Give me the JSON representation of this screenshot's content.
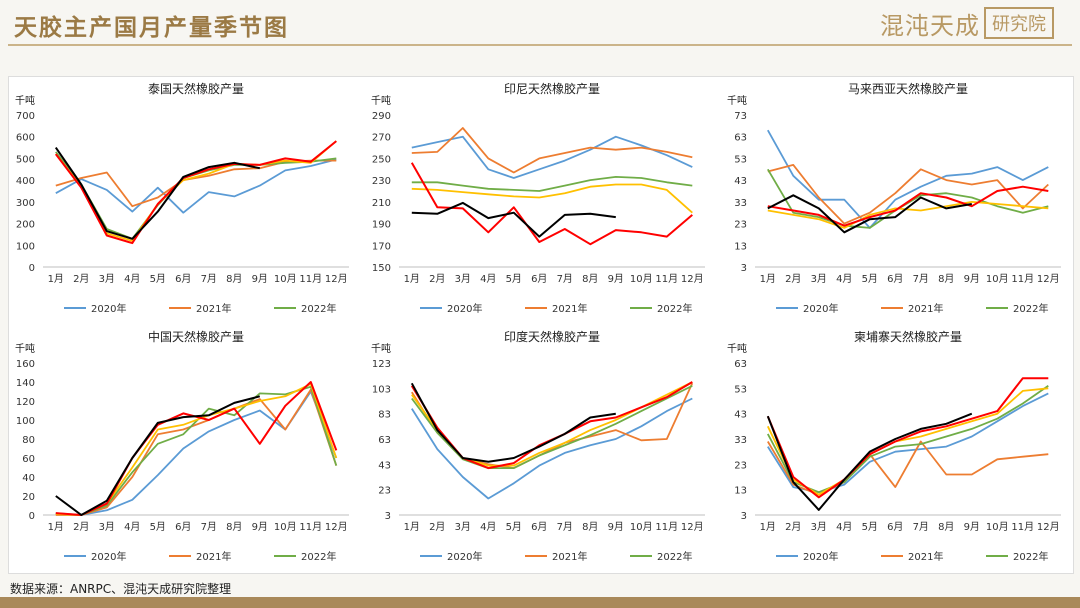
{
  "header": {
    "title": "天胶主产国月产量季节图",
    "logo_main": "混沌天成",
    "logo_box": "研究院"
  },
  "source_note": "数据来源：ANRPC、混沌天成研究院整理",
  "colors": {
    "y2020": "#5b9bd5",
    "y2021": "#ed7d31",
    "y2022": "#70ad47",
    "y2023": "#ffc000",
    "y2024": "#000000",
    "y2025": "#ff0000"
  },
  "chart_data": [
    {
      "type": "line",
      "title": "泰国天然橡胶产量",
      "unit": "千吨",
      "ylim": [
        0,
        700
      ],
      "yticks": [
        0,
        100,
        200,
        300,
        400,
        500,
        600,
        700
      ],
      "categories": [
        "1月",
        "2月",
        "3月",
        "4月",
        "5月",
        "6月",
        "7月",
        "8月",
        "9月",
        "10月",
        "11月",
        "12月"
      ],
      "legend": [
        "2020年",
        "2021年",
        "2022年"
      ],
      "series": [
        {
          "name": "2020年",
          "color": "#5b9bd5",
          "values": [
            340,
            405,
            355,
            255,
            365,
            250,
            345,
            325,
            375,
            445,
            465,
            495
          ]
        },
        {
          "name": "2021年",
          "color": "#ed7d31",
          "values": [
            375,
            410,
            435,
            280,
            320,
            400,
            420,
            450,
            455,
            485,
            490,
            490
          ]
        },
        {
          "name": "2022年",
          "color": "#70ad47",
          "values": [
            530,
            380,
            175,
            130,
            285,
            410,
            445,
            470,
            470,
            480,
            485,
            500
          ]
        },
        {
          "name": "",
          "color": "#ffc000",
          "values": [
            520,
            370,
            155,
            120,
            290,
            400,
            430,
            475,
            470,
            490,
            480,
            580
          ]
        },
        {
          "name": "",
          "color": "#ff0000",
          "values": [
            520,
            365,
            145,
            110,
            290,
            410,
            450,
            475,
            470,
            500,
            485,
            580
          ]
        },
        {
          "name": "",
          "color": "#000000",
          "values": [
            550,
            380,
            165,
            130,
            255,
            415,
            460,
            480,
            455,
            null,
            null,
            null
          ]
        }
      ]
    },
    {
      "type": "line",
      "title": "印尼天然橡胶产量",
      "unit": "千吨",
      "ylim": [
        150,
        290
      ],
      "yticks": [
        150,
        170,
        190,
        210,
        230,
        250,
        270,
        290
      ],
      "categories": [
        "1月",
        "2月",
        "3月",
        "4月",
        "5月",
        "6月",
        "7月",
        "8月",
        "9月",
        "10月",
        "11月",
        "12月"
      ],
      "legend": [
        "2020年",
        "2021年",
        "2022年"
      ],
      "series": [
        {
          "name": "2020年",
          "color": "#5b9bd5",
          "values": [
            260,
            265,
            270,
            240,
            232,
            240,
            248,
            258,
            270,
            262,
            253,
            242
          ]
        },
        {
          "name": "2021年",
          "color": "#ed7d31",
          "values": [
            255,
            256,
            278,
            250,
            237,
            250,
            255,
            260,
            258,
            260,
            256,
            251
          ]
        },
        {
          "name": "2022年",
          "color": "#70ad47",
          "values": [
            228,
            228,
            225,
            222,
            221,
            220,
            225,
            230,
            233,
            232,
            228,
            225
          ]
        },
        {
          "name": "",
          "color": "#ffc000",
          "values": [
            222,
            221,
            219,
            217,
            215,
            214,
            218,
            224,
            226,
            226,
            221,
            200
          ]
        },
        {
          "name": "",
          "color": "#ff0000",
          "values": [
            246,
            205,
            204,
            182,
            205,
            173,
            185,
            171,
            184,
            182,
            178,
            198
          ]
        },
        {
          "name": "",
          "color": "#000000",
          "values": [
            200,
            199,
            209,
            195,
            200,
            178,
            198,
            199,
            196,
            null,
            null,
            null
          ]
        }
      ]
    },
    {
      "type": "line",
      "title": "马来西亚天然橡胶产量",
      "unit": "千吨",
      "ylim": [
        3,
        73
      ],
      "yticks": [
        3,
        13,
        23,
        33,
        43,
        53,
        63,
        73
      ],
      "categories": [
        "1月",
        "2月",
        "3月",
        "4月",
        "5月",
        "6月",
        "7月",
        "8月",
        "9月",
        "10月",
        "11月",
        "12月"
      ],
      "legend": [
        "2020年",
        "2021年",
        "2022年"
      ],
      "series": [
        {
          "name": "2020年",
          "color": "#5b9bd5",
          "values": [
            66,
            45,
            34,
            34,
            21,
            34,
            40,
            45,
            46,
            49,
            43,
            49
          ]
        },
        {
          "name": "2021年",
          "color": "#ed7d31",
          "values": [
            47,
            50,
            35,
            23,
            28,
            37,
            48,
            43,
            41,
            43,
            30,
            41
          ]
        },
        {
          "name": "2022年",
          "color": "#70ad47",
          "values": [
            48,
            28,
            26,
            22,
            21,
            29,
            36,
            37,
            35,
            31,
            28,
            31
          ]
        },
        {
          "name": "",
          "color": "#ffc000",
          "values": [
            29,
            27,
            25,
            21,
            27,
            30,
            29,
            31,
            33,
            32,
            31,
            30
          ]
        },
        {
          "name": "",
          "color": "#ff0000",
          "values": [
            31,
            29,
            27,
            22,
            26,
            29,
            37,
            35,
            31,
            38,
            40,
            38
          ]
        },
        {
          "name": "",
          "color": "#000000",
          "values": [
            30,
            36,
            30,
            19,
            25,
            26,
            35,
            30,
            32,
            null,
            null,
            null
          ]
        }
      ]
    },
    {
      "type": "line",
      "title": "中国天然橡胶产量",
      "unit": "千吨",
      "ylim": [
        0,
        160
      ],
      "yticks": [
        0,
        20,
        40,
        60,
        80,
        100,
        120,
        140,
        160
      ],
      "categories": [
        "1月",
        "2月",
        "3月",
        "4月",
        "5月",
        "6月",
        "7月",
        "8月",
        "9月",
        "10月",
        "11月",
        "12月"
      ],
      "legend": [
        "2020年",
        "2021年",
        "2022年"
      ],
      "series": [
        {
          "name": "2020年",
          "color": "#5b9bd5",
          "values": [
            2,
            0,
            5,
            16,
            42,
            70,
            88,
            100,
            110,
            90,
            130,
            60
          ]
        },
        {
          "name": "2021年",
          "color": "#ed7d31",
          "values": [
            0,
            0,
            8,
            40,
            85,
            90,
            100,
            112,
            122,
            90,
            132,
            52
          ]
        },
        {
          "name": "2022年",
          "color": "#70ad47",
          "values": [
            1,
            0,
            10,
            45,
            75,
            85,
            112,
            105,
            128,
            127,
            135,
            52
          ]
        },
        {
          "name": "",
          "color": "#ffc000",
          "values": [
            1,
            0,
            12,
            50,
            90,
            95,
            105,
            112,
            120,
            125,
            138,
            60
          ]
        },
        {
          "name": "",
          "color": "#ff0000",
          "values": [
            2,
            0,
            12,
            60,
            95,
            107,
            100,
            112,
            75,
            115,
            140,
            68
          ]
        },
        {
          "name": "",
          "color": "#000000",
          "values": [
            20,
            0,
            15,
            60,
            97,
            103,
            105,
            118,
            125,
            null,
            null,
            null
          ]
        }
      ]
    },
    {
      "type": "line",
      "title": "印度天然橡胶产量",
      "unit": "千吨",
      "ylim": [
        3,
        123
      ],
      "yticks": [
        3,
        23,
        43,
        63,
        83,
        103,
        123
      ],
      "categories": [
        "1月",
        "2月",
        "3月",
        "4月",
        "5月",
        "6月",
        "7月",
        "8月",
        "9月",
        "10月",
        "11月",
        "12月"
      ],
      "legend": [
        "2020年",
        "2021年",
        "2022年"
      ],
      "series": [
        {
          "name": "2020年",
          "color": "#5b9bd5",
          "values": [
            87,
            55,
            33,
            16,
            28,
            42,
            52,
            58,
            63,
            73,
            85,
            95
          ]
        },
        {
          "name": "2021年",
          "color": "#ed7d31",
          "values": [
            100,
            68,
            48,
            43,
            40,
            50,
            60,
            65,
            70,
            62,
            63,
            107
          ]
        },
        {
          "name": "2022年",
          "color": "#70ad47",
          "values": [
            95,
            68,
            47,
            40,
            40,
            50,
            58,
            66,
            75,
            85,
            95,
            105
          ]
        },
        {
          "name": "",
          "color": "#ffc000",
          "values": [
            98,
            70,
            48,
            42,
            42,
            52,
            60,
            70,
            78,
            88,
            98,
            108
          ]
        },
        {
          "name": "",
          "color": "#ff0000",
          "values": [
            105,
            72,
            48,
            40,
            44,
            58,
            67,
            77,
            80,
            88,
            96,
            108
          ]
        },
        {
          "name": "",
          "color": "#000000",
          "values": [
            107,
            70,
            48,
            45,
            48,
            57,
            67,
            80,
            83,
            null,
            null,
            null
          ]
        }
      ]
    },
    {
      "type": "line",
      "title": "柬埔寨天然橡胶产量",
      "unit": "千吨",
      "ylim": [
        3,
        63
      ],
      "yticks": [
        3,
        13,
        23,
        33,
        43,
        53,
        63
      ],
      "categories": [
        "1月",
        "2月",
        "3月",
        "4月",
        "5月",
        "6月",
        "7月",
        "8月",
        "9月",
        "10月",
        "11月",
        "12月"
      ],
      "legend": [
        "2020年",
        "2021年",
        "2022年"
      ],
      "series": [
        {
          "name": "2020年",
          "color": "#5b9bd5",
          "values": [
            30,
            14,
            12,
            15,
            24,
            28,
            29,
            30,
            34,
            40,
            46,
            51
          ]
        },
        {
          "name": "2021年",
          "color": "#ed7d31",
          "values": [
            32,
            15,
            11,
            16,
            27,
            14,
            32,
            19,
            19,
            25,
            26,
            27
          ]
        },
        {
          "name": "2022年",
          "color": "#70ad47",
          "values": [
            35,
            16,
            12,
            16,
            26,
            30,
            31,
            34,
            37,
            41,
            47,
            54
          ]
        },
        {
          "name": "",
          "color": "#ffc000",
          "values": [
            38,
            17,
            11,
            17,
            27,
            32,
            34,
            37,
            40,
            43,
            52,
            53
          ]
        },
        {
          "name": "",
          "color": "#ff0000",
          "values": [
            42,
            18,
            10,
            17,
            27,
            32,
            36,
            38,
            41,
            44,
            57,
            57
          ]
        },
        {
          "name": "",
          "color": "#000000",
          "values": [
            42,
            16,
            5,
            17,
            28,
            33,
            37,
            39,
            43,
            null,
            null,
            null
          ]
        }
      ]
    }
  ]
}
